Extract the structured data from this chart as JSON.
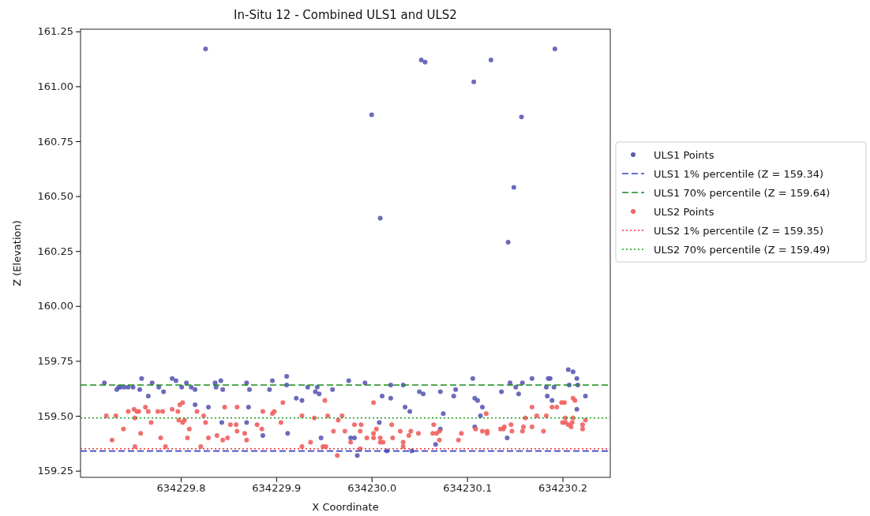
{
  "chart_data": {
    "type": "scatter",
    "title": "In-Situ 12 - Combined ULS1 and ULS2",
    "xlabel": "X Coordinate",
    "ylabel": "Z (Elevation)",
    "xlim": [
      634229.695,
      634230.25
    ],
    "ylim": [
      159.22,
      161.26
    ],
    "xticks": [
      634229.8,
      634229.9,
      {
        "value": 634230,
        "label": "634230.0"
      },
      634230.1,
      634230.2
    ],
    "yticks": [
      {
        "value": 159.25,
        "label": "159.25"
      },
      {
        "value": 159.5,
        "label": "159.50"
      },
      {
        "value": 159.75,
        "label": "159.75"
      },
      {
        "value": 160,
        "label": "160.00"
      },
      {
        "value": 160.25,
        "label": "160.25"
      },
      {
        "value": 160.5,
        "label": "160.50"
      },
      {
        "value": 160.75,
        "label": "160.75"
      },
      {
        "value": 161,
        "label": "161.00"
      },
      {
        "value": 161.25,
        "label": "161.25"
      }
    ],
    "marker": "circle",
    "legend": "right",
    "grid": false,
    "series": [
      {
        "name": "ULS1 Points",
        "color": "#5b5bb5",
        "x": [
          634229.826,
          634230.0,
          634230.009,
          634230.052,
          634230.056,
          634230.107,
          634230.125,
          634230.149,
          634230.157,
          634230.143,
          634230.192,
          634229.72,
          634229.733,
          634229.735,
          634229.737,
          634229.741,
          634229.745,
          634229.75,
          634229.759,
          634229.757,
          634229.766,
          634229.77,
          634229.777,
          634229.782,
          634229.791,
          634229.795,
          634229.801,
          634229.806,
          634229.811,
          634229.815,
          634229.815,
          634229.829,
          634229.836,
          634229.837,
          634229.844,
          634229.842,
          634229.843,
          634229.871,
          634229.869,
          634229.869,
          634229.872,
          634229.896,
          634229.893,
          634229.911,
          634229.911,
          634229.886,
          634229.912,
          634229.921,
          634229.927,
          634229.933,
          634229.941,
          634229.943,
          634229.945,
          634229.959,
          634229.947,
          634229.976,
          634229.978,
          634229.982,
          634229.985,
          634229.993,
          634230.008,
          634230.011,
          634230.02,
          634230.02,
          634230.016,
          634230.033,
          634230.035,
          634230.04,
          634230.042,
          634230.05,
          634230.054,
          634230.072,
          634230.075,
          634230.072,
          634230.067,
          634230.086,
          634230.088,
          634230.106,
          634230.108,
          634230.111,
          634230.116,
          634230.114,
          634230.108,
          634230.136,
          634230.142,
          634230.145,
          634230.151,
          634230.154,
          634230.158,
          634230.168,
          634230.183,
          634230.185,
          634230.187,
          634230.184,
          634230.189,
          634230.191,
          634230.206,
          634230.211,
          634230.215,
          634230.207,
          634230.216,
          634230.215,
          634230.224
        ],
        "values": [
          161.17,
          160.87,
          160.4,
          161.12,
          161.11,
          161.02,
          161.12,
          160.54,
          160.86,
          160.29,
          161.17,
          159.65,
          159.62,
          159.63,
          159.63,
          159.63,
          159.63,
          159.63,
          159.67,
          159.62,
          159.59,
          159.65,
          159.63,
          159.61,
          159.67,
          159.66,
          159.63,
          159.65,
          159.63,
          159.62,
          159.55,
          159.54,
          159.65,
          159.63,
          159.62,
          159.66,
          159.47,
          159.54,
          159.47,
          159.65,
          159.62,
          159.66,
          159.62,
          159.68,
          159.64,
          159.41,
          159.42,
          159.58,
          159.57,
          159.63,
          159.61,
          159.63,
          159.6,
          159.62,
          159.4,
          159.66,
          159.4,
          159.4,
          159.32,
          159.65,
          159.47,
          159.59,
          159.64,
          159.58,
          159.34,
          159.64,
          159.54,
          159.52,
          159.34,
          159.61,
          159.6,
          159.61,
          159.51,
          159.44,
          159.37,
          159.59,
          159.62,
          159.67,
          159.58,
          159.57,
          159.54,
          159.5,
          159.45,
          159.61,
          159.4,
          159.65,
          159.63,
          159.6,
          159.65,
          159.67,
          159.63,
          159.67,
          159.67,
          159.59,
          159.57,
          159.63,
          159.71,
          159.7,
          159.67,
          159.64,
          159.64,
          159.53,
          159.59
        ]
      },
      {
        "name": "ULS2 Points",
        "color": "#f0605f",
        "x": [
          634229.722,
          634229.732,
          634229.74,
          634229.728,
          634229.745,
          634229.752,
          634229.751,
          634229.756,
          634229.754,
          634229.763,
          634229.766,
          634229.758,
          634229.752,
          634229.769,
          634229.776,
          634229.781,
          634229.779,
          634229.784,
          634229.791,
          634229.797,
          634229.799,
          634229.802,
          634229.798,
          634229.802,
          634229.804,
          634229.809,
          634229.807,
          634229.817,
          634229.824,
          634229.826,
          634229.821,
          634229.829,
          634229.838,
          634229.844,
          634229.849,
          634229.846,
          634229.859,
          634229.852,
          634229.858,
          634229.859,
          634229.867,
          634229.869,
          634229.88,
          634229.885,
          634229.886,
          634229.896,
          634229.898,
          634229.907,
          634229.905,
          634229.927,
          634229.94,
          634229.936,
          634229.927,
          634229.949,
          634229.952,
          634229.954,
          634229.951,
          634229.965,
          634229.969,
          634229.96,
          634229.972,
          634229.964,
          634229.978,
          634229.982,
          634229.989,
          634229.988,
          634229.988,
          634229.995,
          634230.002,
          634230.002,
          634230.005,
          634230.009,
          634230.009,
          634230.012,
          634230.002,
          634230.021,
          634230.022,
          634230.03,
          634230.033,
          634230.033,
          634230.039,
          634230.041,
          634230.049,
          634230.065,
          634230.064,
          634230.068,
          634230.071,
          634230.071,
          634230.091,
          634230.094,
          634230.109,
          634230.116,
          634230.121,
          634230.121,
          634230.12,
          634230.135,
          634230.139,
          634230.138,
          634230.146,
          634230.147,
          634230.158,
          634230.159,
          634230.161,
          634230.168,
          634230.168,
          634230.173,
          634230.18,
          634230.183,
          634230.189,
          634230.194,
          634230.199,
          634230.202,
          634230.211,
          634230.213,
          634230.2,
          634230.203,
          634230.206,
          634230.203,
          634230.21,
          634230.209,
          634230.211,
          634230.221,
          634230.224,
          634230.221
        ],
        "values": [
          159.5,
          159.5,
          159.44,
          159.39,
          159.52,
          159.49,
          159.53,
          159.52,
          159.52,
          159.54,
          159.52,
          159.42,
          159.36,
          159.47,
          159.52,
          159.52,
          159.4,
          159.36,
          159.53,
          159.52,
          159.55,
          159.56,
          159.48,
          159.47,
          159.48,
          159.44,
          159.4,
          159.52,
          159.5,
          159.47,
          159.36,
          159.4,
          159.41,
          159.39,
          159.4,
          159.54,
          159.54,
          159.46,
          159.46,
          159.43,
          159.42,
          159.39,
          159.46,
          159.44,
          159.52,
          159.51,
          159.52,
          159.56,
          159.47,
          159.5,
          159.49,
          159.38,
          159.36,
          159.36,
          159.36,
          159.5,
          159.57,
          159.48,
          159.5,
          159.43,
          159.43,
          159.32,
          159.38,
          159.46,
          159.46,
          159.43,
          159.35,
          159.4,
          159.42,
          159.4,
          159.44,
          159.4,
          159.38,
          159.38,
          159.56,
          159.46,
          159.4,
          159.43,
          159.38,
          159.36,
          159.41,
          159.43,
          159.42,
          159.46,
          159.42,
          159.42,
          159.43,
          159.39,
          159.39,
          159.42,
          159.44,
          159.43,
          159.43,
          159.42,
          159.51,
          159.44,
          159.45,
          159.44,
          159.46,
          159.43,
          159.43,
          159.45,
          159.49,
          159.54,
          159.45,
          159.5,
          159.43,
          159.5,
          159.54,
          159.54,
          159.56,
          159.56,
          159.58,
          159.57,
          159.47,
          159.47,
          159.46,
          159.49,
          159.47,
          159.45,
          159.49,
          159.46,
          159.48,
          159.44
        ]
      }
    ],
    "ref_lines": [
      {
        "axis": "y",
        "value": 159.34,
        "label": "ULS1 1% percentile (Z = 159.34)",
        "color": "#3a3fc4",
        "line_style": "dashed"
      },
      {
        "axis": "y",
        "value": 159.64,
        "label": "ULS1 70% percentile (Z = 159.64)",
        "color": "#1a8a1a",
        "line_style": "dashed"
      },
      {
        "axis": "y",
        "value": 159.35,
        "label": "ULS2 1% percentile (Z = 159.35)",
        "color": "#f03a3a",
        "line_style": "dotted"
      },
      {
        "axis": "y",
        "value": 159.49,
        "label": "ULS2 70% percentile (Z = 159.49)",
        "color": "#1a9a1a",
        "line_style": "dotted"
      }
    ]
  }
}
